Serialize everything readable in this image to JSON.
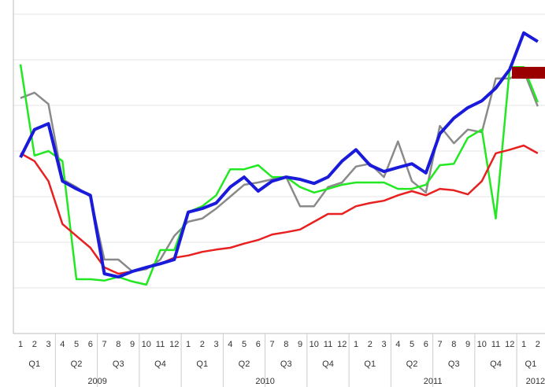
{
  "chart_data": {
    "type": "line",
    "categories": [
      "1",
      "2",
      "3",
      "4",
      "5",
      "6",
      "7",
      "8",
      "9",
      "10",
      "11",
      "12",
      "1",
      "2",
      "3",
      "4",
      "5",
      "6",
      "7",
      "8",
      "9",
      "10",
      "11",
      "12",
      "1",
      "2",
      "3",
      "4",
      "5",
      "6",
      "7",
      "8",
      "9",
      "10",
      "11",
      "12",
      "1",
      "2"
    ],
    "quarter_labels": [
      "Q1",
      "Q2",
      "Q3",
      "Q4",
      "Q1",
      "Q2",
      "Q3",
      "Q4",
      "Q1",
      "Q2",
      "Q3",
      "Q4",
      "Q1"
    ],
    "year_labels": [
      "2009",
      "2010",
      "2011",
      "2012"
    ],
    "ylim": [
      0,
      7
    ],
    "yticks": [
      0,
      1,
      2,
      3,
      4,
      5,
      6,
      7
    ],
    "grid": true,
    "series": [
      {
        "color": "#8a8a8a",
        "width": 2.5,
        "values": [
          5.16,
          5.28,
          5.03,
          3.38,
          3.21,
          3,
          1.62,
          1.62,
          1.36,
          1.41,
          1.62,
          2.14,
          2.45,
          2.52,
          2.74,
          3,
          3.26,
          3.31,
          3.38,
          3.43,
          2.79,
          2.79,
          3.21,
          3.31,
          3.66,
          3.72,
          3.43,
          4.21,
          3.34,
          3.09,
          4.55,
          4.17,
          4.47,
          4.41,
          5.59,
          5.59,
          5.76,
          4.98
        ]
      },
      {
        "color": "#22e822",
        "width": 2.5,
        "values": [
          5.9,
          3.9,
          4,
          3.78,
          1.19,
          1.19,
          1.16,
          1.24,
          1.14,
          1.07,
          1.83,
          1.83,
          2.66,
          2.79,
          3.03,
          3.6,
          3.6,
          3.69,
          3.43,
          3.43,
          3.21,
          3.09,
          3.17,
          3.26,
          3.31,
          3.31,
          3.31,
          3.17,
          3.17,
          3.26,
          3.69,
          3.72,
          4.29,
          4.47,
          2.52,
          5.84,
          5.84,
          5.07
        ]
      },
      {
        "color": "#e82020",
        "width": 2.5,
        "values": [
          3.95,
          3.78,
          3.34,
          2.4,
          2.14,
          1.88,
          1.45,
          1.31,
          1.36,
          1.45,
          1.53,
          1.66,
          1.71,
          1.79,
          1.84,
          1.88,
          1.97,
          2.05,
          2.17,
          2.22,
          2.28,
          2.45,
          2.62,
          2.62,
          2.79,
          2.86,
          2.91,
          3.03,
          3.12,
          3.03,
          3.17,
          3.14,
          3.05,
          3.34,
          3.95,
          4.03,
          4.12,
          3.95
        ]
      },
      {
        "color": "#1a1adb",
        "width": 4,
        "values": [
          3.86,
          4.47,
          4.6,
          3.34,
          3.17,
          3.03,
          1.31,
          1.24,
          1.36,
          1.45,
          1.53,
          1.62,
          2.66,
          2.74,
          2.86,
          3.21,
          3.43,
          3.12,
          3.34,
          3.43,
          3.38,
          3.29,
          3.43,
          3.78,
          4.03,
          3.69,
          3.55,
          3.64,
          3.72,
          3.52,
          4.38,
          4.72,
          4.95,
          5.1,
          5.38,
          5.79,
          6.59,
          6.4
        ]
      }
    ]
  }
}
